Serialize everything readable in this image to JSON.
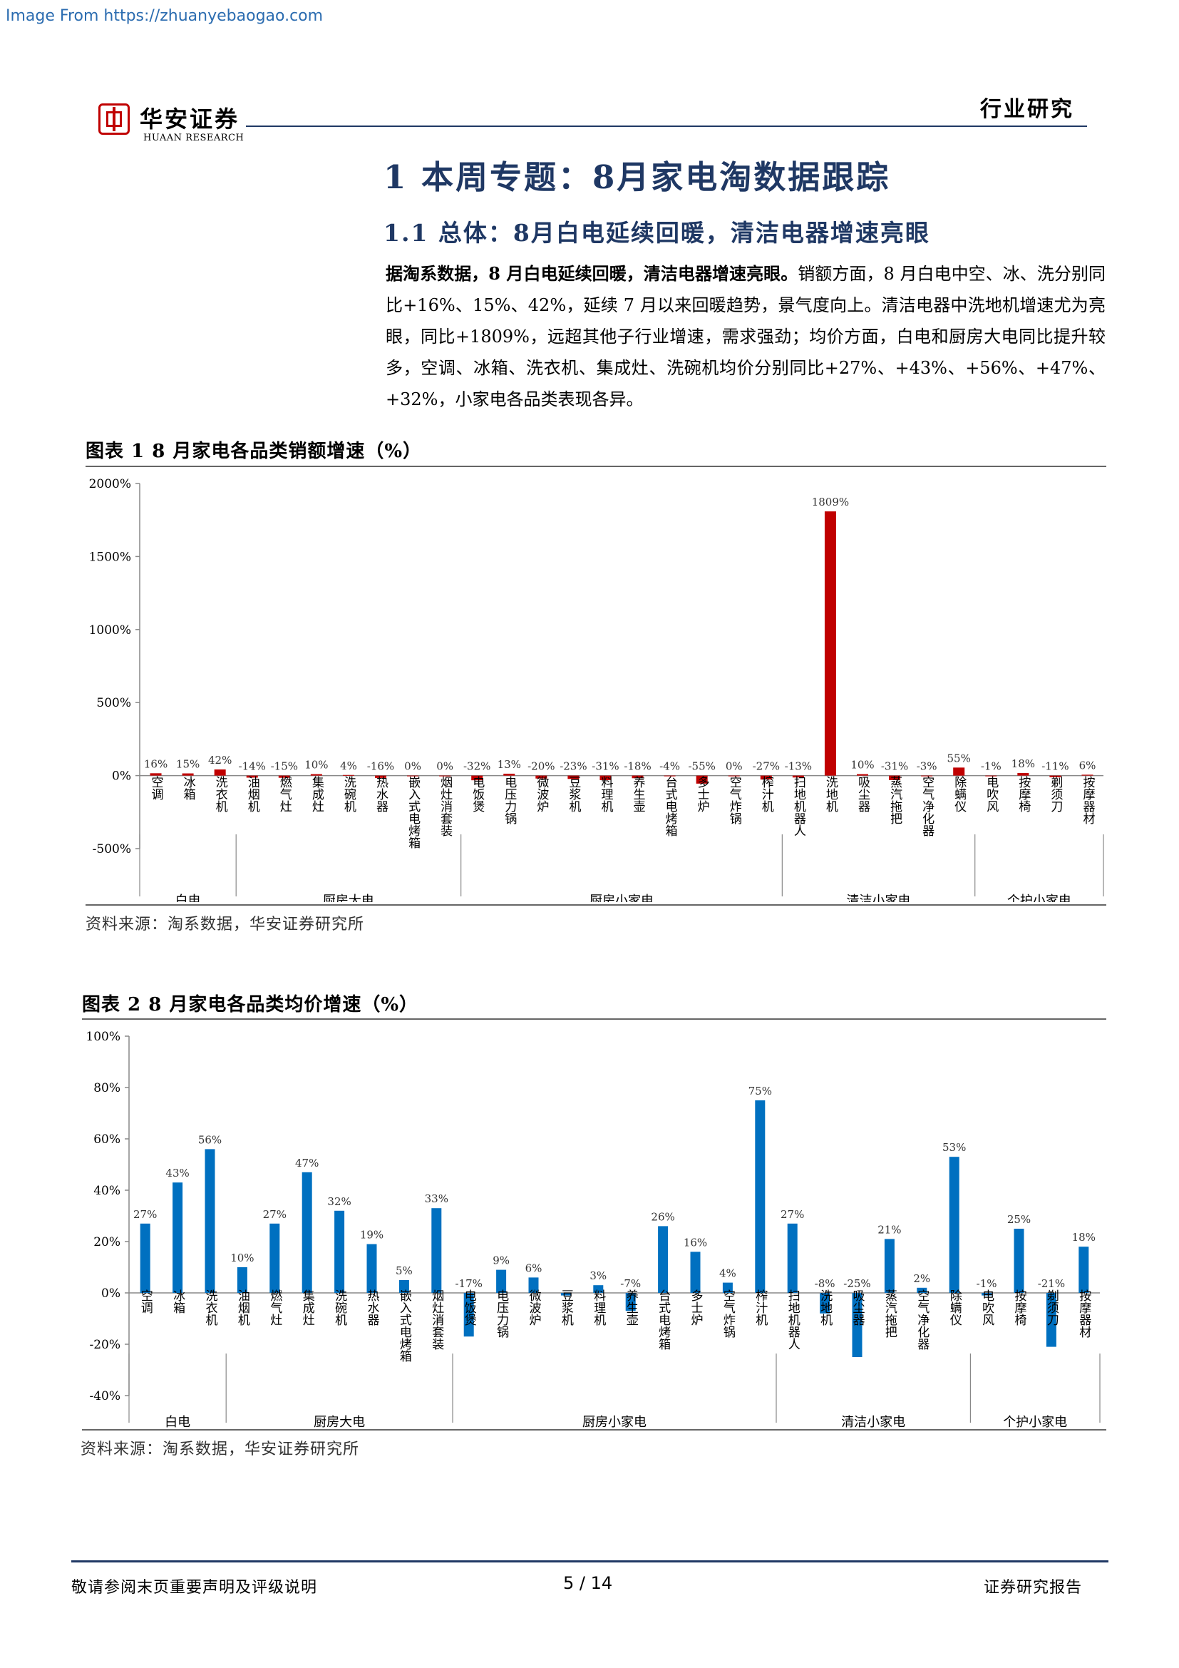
{
  "watermark": "Image From https://zhuanyebaogao.com",
  "header": {
    "brand_name": "华安证券",
    "brand_sub": "HUAAN RESEARCH",
    "section_label": "行业研究"
  },
  "heading1": "1 本周专题：8月家电淘数据跟踪",
  "heading2": "1.1 总体：8月白电延续回暖，清洁电器增速亮眼",
  "paragraph": {
    "lead": "据淘系数据，8 月白电延续回暖，清洁电器增速亮眼。",
    "body": "销额方面，8 月白电中空、冰、洗分别同比+16%、15%、42%，延续 7 月以来回暖趋势，景气度向上。清洁电器中洗地机增速尤为亮眼，同比+1809%，远超其他子行业增速，需求强劲；均价方面，白电和厨房大电同比提升较多，空调、冰箱、洗衣机、集成灶、洗碗机均价分别同比+27%、+43%、+56%、+47%、+32%，小家电各品类表现各异。"
  },
  "figure1": {
    "title": "图表 1 8 月家电各品类销额增速（%）",
    "source": "资料来源：淘系数据，华安证券研究所"
  },
  "figure2": {
    "title": "图表 2 8 月家电各品类均价增速（%）",
    "source": "资料来源：淘系数据，华安证券研究所"
  },
  "chart_data": [
    {
      "type": "bar",
      "title": "图表 1 8 月家电各品类销额增速（%）",
      "categories": [
        "空调",
        "冰箱",
        "洗衣机",
        "油烟机",
        "燃气灶",
        "集成灶",
        "洗碗机",
        "热水器",
        "嵌入式电烤箱",
        "烟灶消套装",
        "电饭煲",
        "电压力锅",
        "微波炉",
        "豆浆机",
        "料理机",
        "养生壶",
        "台式电烤箱",
        "多士炉",
        "空气炸锅",
        "榨汁机",
        "扫地机器人",
        "洗地机",
        "吸尘器",
        "蒸汽拖把",
        "空气净化器",
        "除螨仪",
        "电吹风",
        "按摩椅",
        "剃须刀",
        "按摩器材"
      ],
      "values": [
        16,
        15,
        42,
        -14,
        -15,
        10,
        4,
        -16,
        0,
        0,
        -32,
        13,
        -20,
        -23,
        -31,
        -18,
        -4,
        -55,
        0,
        -27,
        -13,
        1809,
        10,
        -31,
        -3,
        55,
        -1,
        18,
        -11,
        6
      ],
      "data_labels": [
        "16%",
        "15%",
        "42%",
        "-14%",
        "-15%",
        "10%",
        "4%",
        "-16%",
        "0%",
        "0%",
        "-32%",
        "13%",
        "-20%",
        "-23%",
        "-31%",
        "-18%",
        "-4%",
        "-55%",
        "0%",
        "-27%",
        "-13%",
        "1809%",
        "10%",
        "-31%",
        "-3%",
        "55%",
        "-1%",
        "18%",
        "-11%",
        "6%"
      ],
      "groups": [
        {
          "name": "白电",
          "start": 0,
          "end": 2
        },
        {
          "name": "厨房大电",
          "start": 3,
          "end": 9
        },
        {
          "name": "厨房小家电",
          "start": 10,
          "end": 19
        },
        {
          "name": "清洁小家电",
          "start": 20,
          "end": 25
        },
        {
          "name": "个护小家电",
          "start": 26,
          "end": 29
        }
      ],
      "ylim": [
        -500,
        2000
      ],
      "yticks": [
        -500,
        0,
        500,
        1000,
        1500,
        2000
      ],
      "ytick_labels": [
        "-500%",
        "0%",
        "500%",
        "1000%",
        "1500%",
        "2000%"
      ],
      "color": "#c00000",
      "grid": false
    },
    {
      "type": "bar",
      "title": "图表 2 8 月家电各品类均价增速（%）",
      "categories": [
        "空调",
        "冰箱",
        "洗衣机",
        "油烟机",
        "燃气灶",
        "集成灶",
        "洗碗机",
        "热水器",
        "嵌入式电烤箱",
        "烟灶消套装",
        "电饭煲",
        "电压力锅",
        "微波炉",
        "豆浆机",
        "料理机",
        "养生壶",
        "台式电烤箱",
        "多士炉",
        "空气炸锅",
        "榨汁机",
        "扫地机器人",
        "洗地机",
        "吸尘器",
        "蒸汽拖把",
        "空气净化器",
        "除螨仪",
        "电吹风",
        "按摩椅",
        "剃须刀",
        "按摩器材"
      ],
      "values": [
        27,
        43,
        56,
        10,
        27,
        47,
        32,
        19,
        5,
        33,
        -17,
        9,
        6,
        -1,
        3,
        -7,
        26,
        16,
        4,
        75,
        27,
        -8,
        -25,
        21,
        2,
        53,
        -1,
        25,
        -21,
        18
      ],
      "data_labels": [
        "27%",
        "43%",
        "56%",
        "10%",
        "27%",
        "47%",
        "32%",
        "19%",
        "5%",
        "33%",
        "-17%",
        "9%",
        "6%",
        "",
        "3%",
        "-7%",
        "26%",
        "16%",
        "4%",
        "75%",
        "27%",
        "-8%",
        "-25%",
        "21%",
        "2%",
        "53%",
        "-1%",
        "25%",
        "-21%",
        "18%"
      ],
      "groups": [
        {
          "name": "白电",
          "start": 0,
          "end": 2
        },
        {
          "name": "厨房大电",
          "start": 3,
          "end": 9
        },
        {
          "name": "厨房小家电",
          "start": 10,
          "end": 19
        },
        {
          "name": "清洁小家电",
          "start": 20,
          "end": 25
        },
        {
          "name": "个护小家电",
          "start": 26,
          "end": 29
        }
      ],
      "ylim": [
        -40,
        100
      ],
      "yticks": [
        -40,
        -20,
        0,
        20,
        40,
        60,
        80,
        100
      ],
      "ytick_labels": [
        "-40%",
        "-20%",
        "0%",
        "20%",
        "40%",
        "60%",
        "80%",
        "100%"
      ],
      "color": "#0070c0",
      "grid": false
    }
  ],
  "footer": {
    "left": "敬请参阅末页重要声明及评级说明",
    "page": "5 / 14",
    "right": "证券研究报告"
  }
}
